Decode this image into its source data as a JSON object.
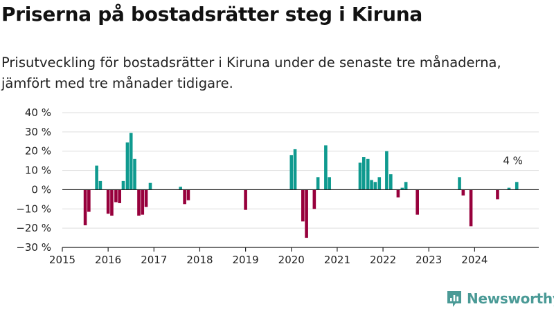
{
  "title": "Priserna på bostadsrätter steg i Kiruna",
  "subtitle": "Prisutveckling för bostadsrätter i Kiruna under de senaste tre månaderna, jämfört med tre månader tidigare.",
  "brand": "Newsworthy",
  "colors": {
    "positive": "#0f9a8f",
    "negative": "#97003c",
    "brand": "#4a9a96"
  },
  "chart_data": {
    "type": "bar",
    "ylim": [
      -30,
      40
    ],
    "yticks": [
      -30,
      -20,
      -10,
      0,
      10,
      20,
      30,
      40
    ],
    "ytick_labels": [
      "−30 %",
      "−20 %",
      "−10 %",
      "0 %",
      "10 %",
      "20 %",
      "30 %",
      "40 %"
    ],
    "xlim": [
      2015,
      2025.4
    ],
    "xticks": [
      2015,
      2016,
      2017,
      2018,
      2019,
      2020,
      2021,
      2022,
      2023,
      2024
    ],
    "xtick_labels": [
      "2015",
      "2016",
      "2017",
      "2018",
      "2019",
      "2020",
      "2021",
      "2022",
      "2023",
      "2024"
    ],
    "grid": true,
    "annotation": {
      "text": "4 %",
      "x": 2024.85,
      "y": 4
    },
    "series": [
      {
        "values": [
          [
            2015.5,
            -18.5
          ],
          [
            2015.58,
            -11.5
          ],
          [
            2015.75,
            12.5
          ],
          [
            2015.83,
            4.5
          ],
          [
            2016.0,
            -12.5
          ],
          [
            2016.08,
            -13.5
          ],
          [
            2016.17,
            -6.5
          ],
          [
            2016.25,
            -7
          ],
          [
            2016.33,
            4.5
          ],
          [
            2016.42,
            24.5
          ],
          [
            2016.5,
            29.5
          ],
          [
            2016.58,
            16
          ],
          [
            2016.67,
            -13.5
          ],
          [
            2016.75,
            -13
          ],
          [
            2016.83,
            -9
          ],
          [
            2016.92,
            3.5
          ],
          [
            2017.58,
            1.5
          ],
          [
            2017.67,
            -7.5
          ],
          [
            2017.75,
            -5.5
          ],
          [
            2019.0,
            -10.5
          ],
          [
            2020.0,
            18
          ],
          [
            2020.08,
            21
          ],
          [
            2020.25,
            -16.5
          ],
          [
            2020.33,
            -25
          ],
          [
            2020.5,
            -10
          ],
          [
            2020.58,
            6.5
          ],
          [
            2020.75,
            23
          ],
          [
            2020.83,
            6.5
          ],
          [
            2021.5,
            14
          ],
          [
            2021.58,
            17
          ],
          [
            2021.67,
            16
          ],
          [
            2021.75,
            5
          ],
          [
            2021.83,
            4
          ],
          [
            2021.92,
            6.5
          ],
          [
            2022.08,
            20
          ],
          [
            2022.17,
            8
          ],
          [
            2022.33,
            -4
          ],
          [
            2022.42,
            1
          ],
          [
            2022.5,
            4
          ],
          [
            2022.75,
            -13
          ],
          [
            2023.67,
            6.5
          ],
          [
            2023.75,
            -3
          ],
          [
            2023.92,
            -19
          ],
          [
            2024.5,
            -5
          ],
          [
            2024.75,
            1
          ],
          [
            2024.92,
            4
          ]
        ]
      }
    ]
  }
}
